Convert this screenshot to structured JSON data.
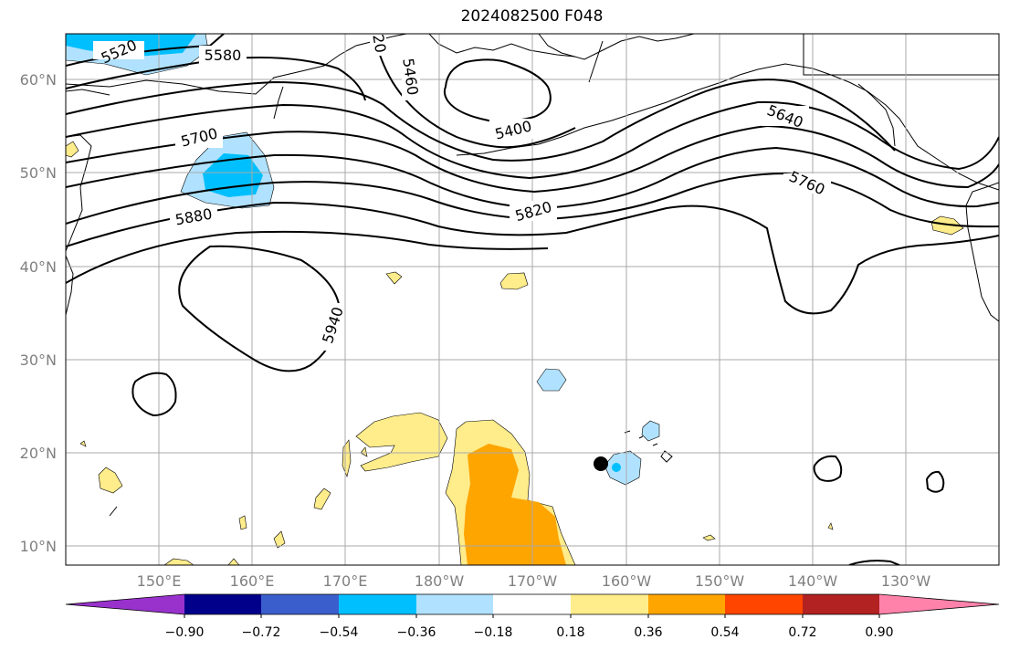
{
  "title": "2024082500 F048",
  "map": {
    "lat_labels": [
      "60°N",
      "50°N",
      "40°N",
      "30°N",
      "20°N",
      "10°N"
    ],
    "lon_labels": [
      "150°E",
      "160°E",
      "170°E",
      "180°W",
      "170°W",
      "160°W",
      "150°W",
      "140°W",
      "130°W"
    ],
    "contour_labels": [
      "5520",
      "5580",
      "5460",
      "20",
      "5400",
      "5700",
      "5640",
      "5760",
      "5880",
      "5820",
      "5940"
    ]
  },
  "colorbar": {
    "ticks": [
      "−0.90",
      "−0.72",
      "−0.54",
      "−0.36",
      "−0.18",
      "0.18",
      "0.36",
      "0.54",
      "0.72",
      "0.90"
    ],
    "colors": [
      "#9932cc",
      "#00008b",
      "#3a5fcd",
      "#00bfff",
      "#b0e2ff",
      "#ffffff",
      "#ffec8b",
      "#ffa500",
      "#ff4500",
      "#b22222",
      "#ff82ab"
    ]
  }
}
